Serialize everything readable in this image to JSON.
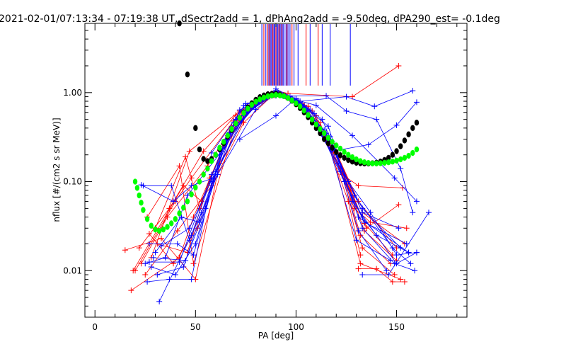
{
  "chart_data": {
    "type": "scatter",
    "title": "2021-02-01/07:13:34 - 07:19:38 UT, dSectr2add = 1, dPhAng2add = -9.50deg, dPA290_est=  -0.1deg",
    "xlabel": "PA [deg]",
    "ylabel": "nflux [#/(cm2 s sr MeV)]",
    "xlim": [
      -5,
      185
    ],
    "ylim": [
      0.003,
      6.0
    ],
    "yscale": "log",
    "grid": false,
    "x_ticks": [
      {
        "value": 0,
        "label": "0"
      },
      {
        "value": 50,
        "label": "50"
      },
      {
        "value": 100,
        "label": "100"
      },
      {
        "value": 150,
        "label": "150"
      }
    ],
    "y_ticks": [
      {
        "value": 0.01,
        "label": "0.01"
      },
      {
        "value": 0.1,
        "label": "0.10"
      },
      {
        "value": 1.0,
        "label": "1.00"
      }
    ],
    "colors": {
      "red": "#ff0000",
      "blue": "#0000ff",
      "black": "#000000",
      "green": "#00ff00"
    },
    "vlines": [
      {
        "x": 83,
        "color": "#0000ff"
      },
      {
        "x": 84,
        "color": "#ff0000"
      },
      {
        "x": 85,
        "color": "#0000ff"
      },
      {
        "x": 86,
        "color": "#ff0000"
      },
      {
        "x": 86.5,
        "color": "#0000ff"
      },
      {
        "x": 87,
        "color": "#ff0000"
      },
      {
        "x": 87.5,
        "color": "#0000ff"
      },
      {
        "x": 88,
        "color": "#0000ff"
      },
      {
        "x": 88.5,
        "color": "#ff0000"
      },
      {
        "x": 89,
        "color": "#0000ff"
      },
      {
        "x": 89.5,
        "color": "#0000ff"
      },
      {
        "x": 90,
        "color": "#ff0000"
      },
      {
        "x": 90.5,
        "color": "#0000ff"
      },
      {
        "x": 91,
        "color": "#0000ff"
      },
      {
        "x": 91.5,
        "color": "#ff0000"
      },
      {
        "x": 92,
        "color": "#0000ff"
      },
      {
        "x": 92.5,
        "color": "#0000ff"
      },
      {
        "x": 93,
        "color": "#ff0000"
      },
      {
        "x": 93.5,
        "color": "#0000ff"
      },
      {
        "x": 94,
        "color": "#0000ff"
      },
      {
        "x": 95,
        "color": "#0000ff"
      },
      {
        "x": 95.5,
        "color": "#ff0000"
      },
      {
        "x": 96,
        "color": "#0000ff"
      },
      {
        "x": 97,
        "color": "#0000ff"
      },
      {
        "x": 98,
        "color": "#ff0000"
      },
      {
        "x": 99,
        "color": "#0000ff"
      },
      {
        "x": 101,
        "color": "#0000ff"
      },
      {
        "x": 105,
        "color": "#ff0000"
      },
      {
        "x": 107,
        "color": "#0000ff"
      },
      {
        "x": 111,
        "color": "#ff0000"
      },
      {
        "x": 113,
        "color": "#0000ff"
      },
      {
        "x": 117,
        "color": "#0000ff"
      },
      {
        "x": 127,
        "color": "#0000ff"
      }
    ],
    "series": [
      {
        "color": "#ff0000",
        "x": [
          28,
          47,
          72,
          86,
          90,
          96,
          128,
          151
        ],
        "y": [
          0.014,
          0.22,
          0.62,
          0.9,
          1.05,
          0.98,
          0.9,
          2.0
        ]
      },
      {
        "color": "#ff0000",
        "x": [
          22,
          37,
          54,
          70,
          85,
          91,
          100,
          120,
          133,
          154
        ],
        "y": [
          0.018,
          0.05,
          0.22,
          0.56,
          0.88,
          0.99,
          0.82,
          0.21,
          0.045,
          0.02
        ]
      },
      {
        "color": "#ff0000",
        "x": [
          18,
          42,
          49,
          64,
          80,
          90,
          103,
          121,
          134,
          148
        ],
        "y": [
          0.006,
          0.014,
          0.04,
          0.25,
          0.8,
          0.96,
          0.75,
          0.18,
          0.034,
          0.015
        ]
      },
      {
        "color": "#ff0000",
        "x": [
          25,
          41,
          58,
          74,
          88,
          92,
          106,
          124,
          132,
          147
        ],
        "y": [
          0.009,
          0.028,
          0.09,
          0.46,
          0.92,
          0.97,
          0.7,
          0.11,
          0.025,
          0.012
        ]
      },
      {
        "color": "#ff0000",
        "x": [
          30,
          45,
          52,
          66,
          82,
          90,
          98,
          118,
          131,
          150
        ],
        "y": [
          0.03,
          0.19,
          0.05,
          0.33,
          0.85,
          0.95,
          0.86,
          0.27,
          0.06,
          0.018
        ]
      },
      {
        "color": "#ff0000",
        "x": [
          15,
          33,
          50,
          62,
          78,
          89,
          101,
          116,
          132,
          152
        ],
        "y": [
          0.017,
          0.023,
          0.008,
          0.16,
          0.71,
          0.94,
          0.81,
          0.32,
          0.012,
          0.008
        ]
      },
      {
        "color": "#ff0000",
        "x": [
          20,
          40,
          48,
          69,
          87,
          93,
          110,
          127,
          135,
          151
        ],
        "y": [
          0.01,
          0.06,
          0.11,
          0.48,
          0.9,
          0.93,
          0.55,
          0.08,
          0.03,
          0.055
        ]
      },
      {
        "color": "#ff0000",
        "x": [
          27,
          39,
          51,
          68,
          84,
          90,
          104,
          122,
          133,
          149
        ],
        "y": [
          0.026,
          0.012,
          0.03,
          0.42,
          0.86,
          0.97,
          0.72,
          0.14,
          0.018,
          0.009
        ]
      },
      {
        "color": "#ff0000",
        "x": [
          23,
          36,
          56,
          73,
          86,
          94,
          108,
          123,
          131,
          153
        ],
        "y": [
          0.012,
          0.04,
          0.15,
          0.6,
          0.88,
          0.91,
          0.62,
          0.12,
          0.09,
          0.085
        ]
      },
      {
        "color": "#ff0000",
        "x": [
          19,
          44,
          53,
          67,
          83,
          91,
          99,
          119,
          134,
          150
        ],
        "y": [
          0.01,
          0.09,
          0.06,
          0.38,
          0.8,
          0.98,
          0.83,
          0.24,
          0.028,
          0.013
        ]
      },
      {
        "color": "#ff0000",
        "x": [
          26,
          42,
          49,
          71,
          89,
          95,
          112,
          126,
          132
        ],
        "y": [
          0.04,
          0.15,
          0.012,
          0.52,
          0.93,
          0.89,
          0.46,
          0.06,
          0.015
        ]
      },
      {
        "color": "#ff0000",
        "x": [
          31,
          46,
          57,
          76,
          90,
          97,
          115,
          129,
          137,
          155
        ],
        "y": [
          0.02,
          0.016,
          0.11,
          0.72,
          0.96,
          0.84,
          0.35,
          0.05,
          0.035,
          0.03
        ]
      },
      {
        "color": "#0000ff",
        "x": [
          32,
          48,
          62,
          74,
          88,
          90,
          102,
          125,
          139,
          158
        ],
        "y": [
          0.0045,
          0.025,
          0.2,
          0.71,
          0.95,
          1.1,
          0.8,
          0.9,
          0.7,
          1.05
        ]
      },
      {
        "color": "#0000ff",
        "x": [
          24,
          38,
          47,
          61,
          80,
          89,
          100,
          117,
          131,
          156
        ],
        "y": [
          0.09,
          0.09,
          0.022,
          0.12,
          0.65,
          0.95,
          0.85,
          0.32,
          0.04,
          0.016
        ]
      },
      {
        "color": "#0000ff",
        "x": [
          27,
          41,
          49,
          65,
          82,
          90,
          104,
          119,
          133,
          149,
          159
        ],
        "y": [
          0.02,
          0.02,
          0.015,
          0.3,
          0.82,
          0.96,
          0.7,
          0.24,
          0.03,
          0.012,
          0.01
        ]
      },
      {
        "color": "#0000ff",
        "x": [
          26,
          37,
          48,
          58,
          76,
          88,
          98,
          114,
          130,
          147
        ],
        "y": [
          0.0075,
          0.008,
          0.008,
          0.1,
          0.62,
          0.92,
          0.87,
          0.38,
          0.022,
          0.013
        ]
      },
      {
        "color": "#0000ff",
        "x": [
          29,
          45,
          55,
          70,
          86,
          91,
          103,
          121,
          133,
          152
        ],
        "y": [
          0.014,
          0.013,
          0.05,
          0.5,
          0.9,
          0.97,
          0.74,
          0.16,
          0.05,
          0.018
        ]
      },
      {
        "color": "#0000ff",
        "x": [
          30,
          43,
          52,
          67,
          84,
          92,
          107,
          124,
          134,
          155
        ],
        "y": [
          0.016,
          0.04,
          0.035,
          0.36,
          0.86,
          0.96,
          0.64,
          0.1,
          0.035,
          0.02
        ]
      },
      {
        "color": "#0000ff",
        "x": [
          25,
          35,
          46,
          63,
          78,
          89,
          101,
          116,
          128,
          150,
          160
        ],
        "y": [
          0.012,
          0.014,
          0.07,
          0.22,
          0.7,
          0.97,
          0.8,
          0.42,
          0.06,
          0.012,
          0.016
        ]
      },
      {
        "color": "#0000ff",
        "x": [
          33,
          47,
          60,
          72,
          86,
          90,
          97,
          118,
          131,
          145
        ],
        "y": [
          0.019,
          0.03,
          0.13,
          0.64,
          0.91,
          1.05,
          0.9,
          0.28,
          0.028,
          0.01
        ]
      },
      {
        "color": "#0000ff",
        "x": [
          28,
          40,
          50,
          64,
          81,
          90,
          105,
          120,
          133,
          151
        ],
        "y": [
          0.011,
          0.009,
          0.02,
          0.27,
          0.76,
          0.95,
          0.68,
          0.2,
          0.045,
          0.03
        ]
      },
      {
        "color": "#0000ff",
        "x": [
          23,
          39,
          48,
          59,
          74,
          88,
          99,
          115,
          129,
          148,
          157
        ],
        "y": [
          0.092,
          0.06,
          0.09,
          0.11,
          0.55,
          0.93,
          0.85,
          0.35,
          0.07,
          0.018,
          0.012
        ]
      },
      {
        "color": "#0000ff",
        "x": [
          31,
          44,
          53,
          69,
          85,
          93,
          109,
          122,
          133,
          140,
          156
        ],
        "y": [
          0.009,
          0.011,
          0.045,
          0.46,
          0.89,
          0.93,
          0.58,
          0.13,
          0.04,
          0.025,
          0.016
        ]
      },
      {
        "color": "#0000ff",
        "x": [
          27,
          42,
          58,
          75,
          87,
          90,
          102,
          113,
          126,
          137,
          150,
          160
        ],
        "y": [
          0.0125,
          0.0125,
          0.12,
          0.68,
          0.92,
          1.0,
          0.78,
          0.5,
          0.1,
          0.045,
          0.015,
          0.016
        ]
      },
      {
        "color": "#0000ff",
        "x": [
          72,
          90,
          100,
          118,
          136,
          150,
          160
        ],
        "y": [
          0.3,
          0.55,
          0.86,
          0.22,
          0.26,
          0.43,
          0.78
        ]
      },
      {
        "color": "#0000ff",
        "x": [
          58,
          75,
          90,
          115,
          125,
          140,
          152,
          158
        ],
        "y": [
          0.21,
          0.75,
          0.92,
          0.92,
          0.62,
          0.5,
          0.14,
          0.045
        ]
      },
      {
        "color": "#0000ff",
        "x": [
          90,
          110,
          128,
          149,
          160
        ],
        "y": [
          0.95,
          0.72,
          0.33,
          0.11,
          0.06
        ]
      },
      {
        "color": "#0000ff",
        "x": [
          133,
          146,
          166
        ],
        "y": [
          0.009,
          0.009,
          0.045
        ]
      },
      {
        "color": "#ff0000",
        "x": [
          131,
          140,
          148,
          154
        ],
        "y": [
          0.0105,
          0.0105,
          0.0075,
          0.0075
        ]
      }
    ],
    "curves": [
      {
        "color": "#000000",
        "kind": "dots",
        "x": [
          42,
          46,
          50,
          52,
          54,
          56,
          58,
          60,
          62,
          64,
          66,
          68,
          70,
          72,
          74,
          76,
          78,
          80,
          82,
          84,
          86,
          88,
          90,
          92,
          94,
          96,
          98,
          100,
          102,
          104,
          106,
          108,
          110,
          112,
          114,
          116,
          118,
          120,
          122,
          124,
          126,
          128,
          130,
          132,
          134,
          136,
          138,
          140,
          142,
          144,
          146,
          148,
          150,
          152,
          154,
          156,
          158,
          160
        ],
        "y": [
          6.0,
          1.6,
          0.4,
          0.23,
          0.18,
          0.17,
          0.18,
          0.2,
          0.23,
          0.27,
          0.32,
          0.38,
          0.45,
          0.52,
          0.6,
          0.68,
          0.76,
          0.83,
          0.89,
          0.93,
          0.96,
          0.97,
          0.97,
          0.95,
          0.92,
          0.87,
          0.81,
          0.74,
          0.67,
          0.6,
          0.53,
          0.46,
          0.4,
          0.35,
          0.3,
          0.27,
          0.24,
          0.215,
          0.198,
          0.185,
          0.175,
          0.168,
          0.163,
          0.161,
          0.16,
          0.16,
          0.161,
          0.163,
          0.168,
          0.175,
          0.185,
          0.2,
          0.22,
          0.25,
          0.29,
          0.34,
          0.4,
          0.46
        ]
      },
      {
        "color": "#00ff00",
        "kind": "dots",
        "x": [
          20,
          21,
          22,
          23,
          24,
          26,
          28,
          30,
          32,
          34,
          36,
          38,
          40,
          42,
          44,
          46,
          48,
          50,
          52,
          54,
          56,
          58,
          60,
          62,
          64,
          66,
          68,
          70,
          72,
          74,
          76,
          78,
          80,
          82,
          84,
          86,
          88,
          90,
          92,
          94,
          96,
          98,
          100,
          102,
          104,
          106,
          108,
          110,
          112,
          114,
          116,
          118,
          120,
          122,
          124,
          126,
          128,
          130,
          132,
          134,
          136,
          138,
          140,
          142,
          144,
          146,
          148,
          150,
          152,
          154,
          156,
          158,
          160
        ],
        "y": [
          0.1,
          0.085,
          0.07,
          0.058,
          0.048,
          0.038,
          0.032,
          0.029,
          0.028,
          0.029,
          0.031,
          0.034,
          0.038,
          0.044,
          0.051,
          0.06,
          0.072,
          0.086,
          0.1,
          0.12,
          0.14,
          0.17,
          0.2,
          0.24,
          0.28,
          0.33,
          0.39,
          0.45,
          0.52,
          0.59,
          0.66,
          0.73,
          0.79,
          0.84,
          0.88,
          0.91,
          0.93,
          0.94,
          0.93,
          0.91,
          0.87,
          0.82,
          0.76,
          0.7,
          0.63,
          0.56,
          0.5,
          0.44,
          0.39,
          0.35,
          0.31,
          0.28,
          0.255,
          0.235,
          0.215,
          0.2,
          0.188,
          0.178,
          0.17,
          0.165,
          0.162,
          0.16,
          0.16,
          0.161,
          0.163,
          0.165,
          0.168,
          0.172,
          0.178,
          0.185,
          0.195,
          0.21,
          0.23
        ]
      }
    ]
  }
}
